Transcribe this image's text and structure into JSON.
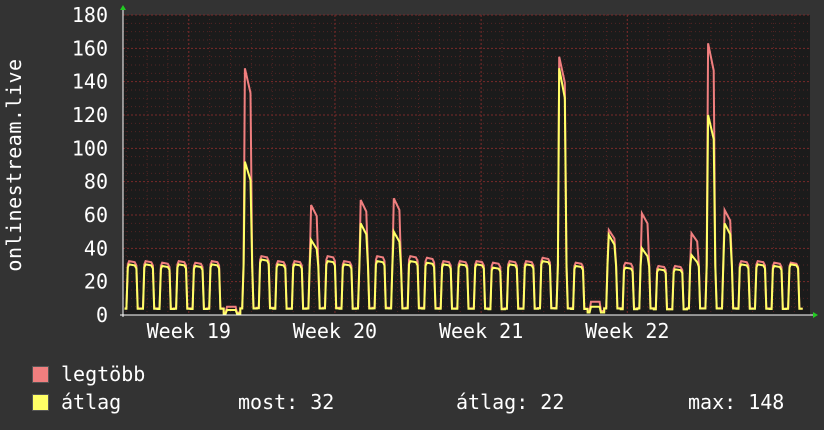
{
  "ylabel": "onlinestream.live",
  "legend": [
    {
      "label": "legtöbb",
      "color": "#f07f7f"
    },
    {
      "label": "átlag",
      "color": "#ffff66"
    }
  ],
  "stats": {
    "now_label": "most:",
    "now_value": "32",
    "avg_label": "átlag:",
    "avg_value": "22",
    "max_label": "max:",
    "max_value": "148"
  },
  "colors": {
    "background": "#333333",
    "plot_background": "#1b1b1b",
    "grid": "#7a2a2a",
    "axis": "#ffffff",
    "max_series": "#f07f7f",
    "avg_series": "#ffff66"
  },
  "chart_data": {
    "type": "line",
    "title": "",
    "xlabel": "",
    "ylabel": "onlinestream.live",
    "ylim": [
      0,
      180
    ],
    "yticks": [
      0,
      20,
      40,
      60,
      80,
      100,
      120,
      140,
      160,
      180
    ],
    "xlim": [
      18.55,
      23.25
    ],
    "xticks": [
      {
        "value": 19,
        "label": "Week 19"
      },
      {
        "value": 20,
        "label": "Week 20"
      },
      {
        "value": 21,
        "label": "Week 21"
      },
      {
        "value": 22,
        "label": "Week 22"
      }
    ],
    "grid": true,
    "daily_peaks": [
      {
        "max": 33,
        "avg": 31
      },
      {
        "max": 33,
        "avg": 31
      },
      {
        "max": 32,
        "avg": 30
      },
      {
        "max": 33,
        "avg": 31
      },
      {
        "max": 32,
        "avg": 30
      },
      {
        "max": 33,
        "avg": 31
      },
      {
        "max": 5,
        "avg": 3
      },
      {
        "max": 148,
        "avg": 92
      },
      {
        "max": 36,
        "avg": 34
      },
      {
        "max": 33,
        "avg": 31
      },
      {
        "max": 33,
        "avg": 31
      },
      {
        "max": 66,
        "avg": 45
      },
      {
        "max": 36,
        "avg": 33
      },
      {
        "max": 33,
        "avg": 31
      },
      {
        "max": 69,
        "avg": 55
      },
      {
        "max": 36,
        "avg": 33
      },
      {
        "max": 70,
        "avg": 50
      },
      {
        "max": 36,
        "avg": 33
      },
      {
        "max": 35,
        "avg": 32
      },
      {
        "max": 33,
        "avg": 31
      },
      {
        "max": 33,
        "avg": 31
      },
      {
        "max": 33,
        "avg": 31
      },
      {
        "max": 32,
        "avg": 29
      },
      {
        "max": 33,
        "avg": 31
      },
      {
        "max": 33,
        "avg": 31
      },
      {
        "max": 35,
        "avg": 33
      },
      {
        "max": 155,
        "avg": 148
      },
      {
        "max": 32,
        "avg": 30
      },
      {
        "max": 8,
        "avg": 5
      },
      {
        "max": 51,
        "avg": 48
      },
      {
        "max": 32,
        "avg": 29
      },
      {
        "max": 61,
        "avg": 40
      },
      {
        "max": 30,
        "avg": 28
      },
      {
        "max": 30,
        "avg": 28
      },
      {
        "max": 49,
        "avg": 36
      },
      {
        "max": 163,
        "avg": 120
      },
      {
        "max": 63,
        "avg": 55
      },
      {
        "max": 33,
        "avg": 31
      },
      {
        "max": 33,
        "avg": 31
      },
      {
        "max": 32,
        "avg": 30
      },
      {
        "max": 32,
        "avg": 31
      }
    ]
  }
}
